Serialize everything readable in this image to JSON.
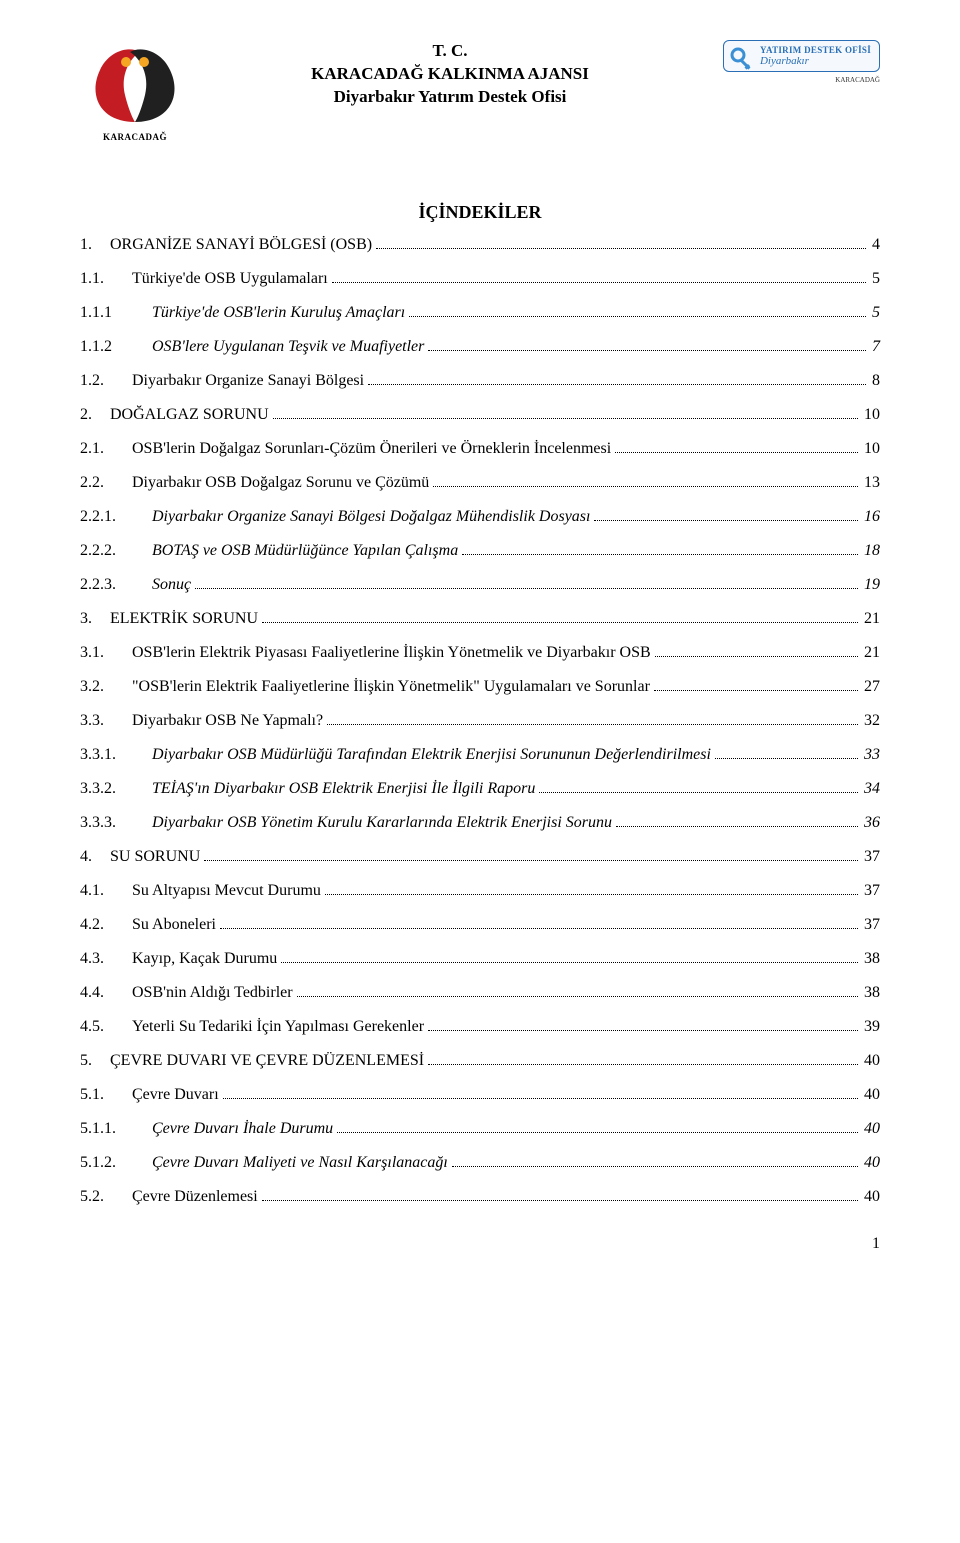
{
  "header": {
    "line1": "T. C.",
    "line2": "KARACADAĞ KALKINMA AJANSI",
    "line3": "Diyarbakır Yatırım Destek Ofisi",
    "left_logo_caption": "KARACADAĞ",
    "right_box_title": "YATIRIM DESTEK OFİSİ",
    "right_box_sub": "Diyarbakır",
    "mini_caption": "KARACADAĞ"
  },
  "toc_title": "İÇİNDEKİLER",
  "page_number": "1",
  "colors": {
    "text": "#000000",
    "bg": "#ffffff",
    "ydo_border": "#2a6fb5",
    "ydo_bg": "#f5f9fd",
    "ydo_text": "#2a6fb5",
    "logo_red": "#c31c22",
    "logo_orange": "#f5a623",
    "logo_black": "#202020",
    "key_blue": "#3b8fd4"
  },
  "entries": [
    {
      "level": 1,
      "italic": false,
      "num": "1.",
      "label": "ORGANİZE SANAYİ BÖLGESİ (OSB)",
      "page": "4"
    },
    {
      "level": 2,
      "italic": false,
      "num": "1.1.",
      "label": "Türkiye'de OSB Uygulamaları",
      "page": "5"
    },
    {
      "level": 3,
      "italic": true,
      "num": "1.1.1",
      "label": "Türkiye'de OSB'lerin Kuruluş Amaçları",
      "page": "5"
    },
    {
      "level": 3,
      "italic": true,
      "num": "1.1.2",
      "label": "OSB'lere Uygulanan Teşvik ve Muafiyetler",
      "page": "7"
    },
    {
      "level": 2,
      "italic": false,
      "num": "1.2.",
      "label": "Diyarbakır Organize Sanayi Bölgesi",
      "page": "8"
    },
    {
      "level": 1,
      "italic": false,
      "num": "2.",
      "label": "DOĞALGAZ SORUNU",
      "page": "10"
    },
    {
      "level": 2,
      "italic": false,
      "num": "2.1.",
      "label": "OSB'lerin Doğalgaz Sorunları-Çözüm Önerileri ve Örneklerin İncelenmesi",
      "page": "10"
    },
    {
      "level": 2,
      "italic": false,
      "num": "2.2.",
      "label": "Diyarbakır OSB Doğalgaz Sorunu ve Çözümü",
      "page": "13"
    },
    {
      "level": 3,
      "italic": true,
      "num": "2.2.1.",
      "label": "Diyarbakır Organize Sanayi Bölgesi Doğalgaz Mühendislik Dosyası",
      "page": "16"
    },
    {
      "level": 3,
      "italic": true,
      "num": "2.2.2.",
      "label": "BOTAŞ ve OSB Müdürlüğünce Yapılan Çalışma",
      "page": "18"
    },
    {
      "level": 3,
      "italic": true,
      "num": "2.2.3.",
      "label": "Sonuç",
      "page": "19"
    },
    {
      "level": 1,
      "italic": false,
      "num": "3.",
      "label": "ELEKTRİK SORUNU",
      "page": "21"
    },
    {
      "level": 2,
      "italic": false,
      "num": "3.1.",
      "label": "OSB'lerin Elektrik Piyasası Faaliyetlerine İlişkin Yönetmelik ve Diyarbakır OSB",
      "page": "21"
    },
    {
      "level": 2,
      "italic": false,
      "num": "3.2.",
      "label": "\"OSB'lerin Elektrik Faaliyetlerine İlişkin Yönetmelik\" Uygulamaları ve Sorunlar",
      "page": "27"
    },
    {
      "level": 2,
      "italic": false,
      "num": "3.3.",
      "label": "Diyarbakır OSB Ne Yapmalı?",
      "page": "32"
    },
    {
      "level": 3,
      "italic": true,
      "num": "3.3.1.",
      "label": "Diyarbakır OSB Müdürlüğü Tarafından Elektrik Enerjisi Sorununun Değerlendirilmesi",
      "page": "33"
    },
    {
      "level": 3,
      "italic": true,
      "num": "3.3.2.",
      "label": "TEİAŞ'ın Diyarbakır OSB Elektrik Enerjisi İle İlgili Raporu",
      "page": "34"
    },
    {
      "level": 3,
      "italic": true,
      "num": "3.3.3.",
      "label": "Diyarbakır OSB Yönetim Kurulu Kararlarında Elektrik Enerjisi Sorunu",
      "page": "36"
    },
    {
      "level": 1,
      "italic": false,
      "num": "4.",
      "label": "SU SORUNU",
      "page": "37"
    },
    {
      "level": 2,
      "italic": false,
      "num": "4.1.",
      "label": "Su Altyapısı Mevcut Durumu",
      "page": "37"
    },
    {
      "level": 2,
      "italic": false,
      "num": "4.2.",
      "label": "Su Aboneleri",
      "page": "37"
    },
    {
      "level": 2,
      "italic": false,
      "num": "4.3.",
      "label": "Kayıp, Kaçak Durumu",
      "page": "38"
    },
    {
      "level": 2,
      "italic": false,
      "num": "4.4.",
      "label": "OSB'nin Aldığı Tedbirler",
      "page": "38"
    },
    {
      "level": 2,
      "italic": false,
      "num": "4.5.",
      "label": "Yeterli Su Tedariki İçin Yapılması Gerekenler",
      "page": "39"
    },
    {
      "level": 1,
      "italic": false,
      "num": "5.",
      "label": "ÇEVRE DUVARI VE ÇEVRE DÜZENLEMESİ",
      "page": "40"
    },
    {
      "level": 2,
      "italic": false,
      "num": "5.1.",
      "label": "Çevre Duvarı",
      "page": "40"
    },
    {
      "level": 3,
      "italic": true,
      "num": "5.1.1.",
      "label": "Çevre Duvarı İhale Durumu",
      "page": "40"
    },
    {
      "level": 3,
      "italic": true,
      "num": "5.1.2.",
      "label": "Çevre Duvarı Maliyeti ve Nasıl Karşılanacağı",
      "page": "40"
    },
    {
      "level": 2,
      "italic": false,
      "num": "5.2.",
      "label": "Çevre Düzenlemesi",
      "page": "40"
    }
  ]
}
